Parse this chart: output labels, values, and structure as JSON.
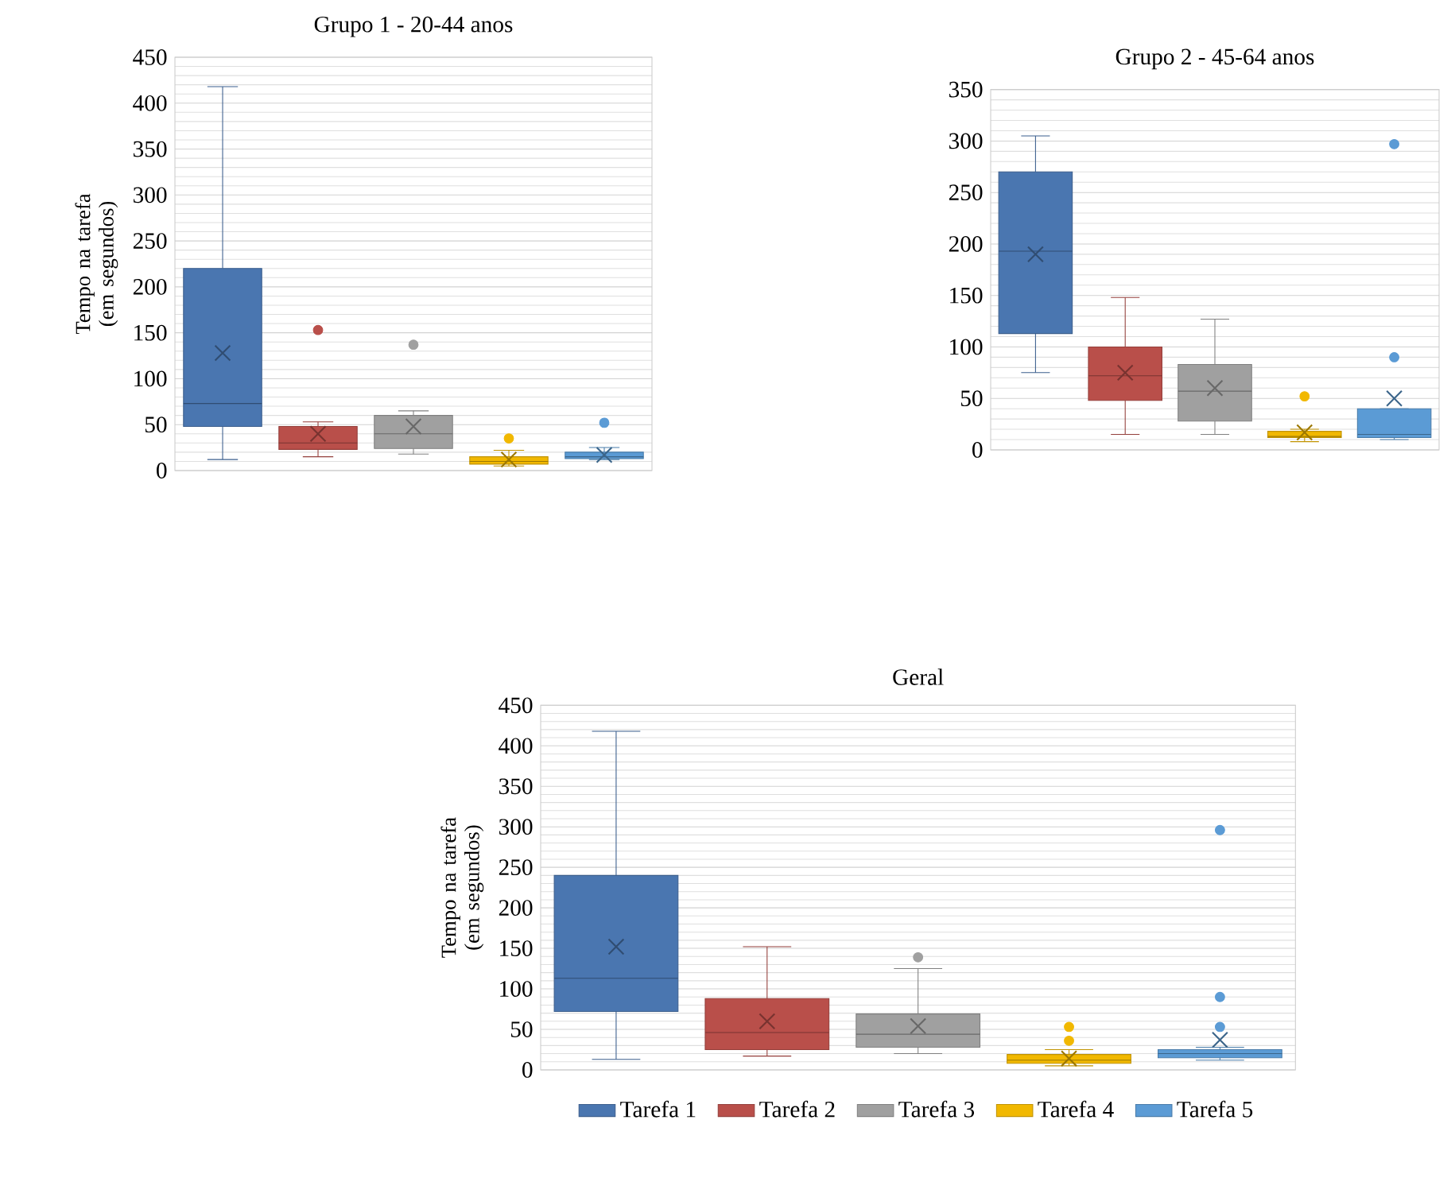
{
  "chart_data": [
    {
      "type": "box",
      "title": "Grupo 1 - 20-44 anos",
      "ylabel": "Tempo na tarefa (em segundos)",
      "categories": [
        null
      ],
      "ylim": [
        0,
        450
      ],
      "yticks": [
        0,
        50,
        100,
        150,
        200,
        250,
        300,
        350,
        400,
        450
      ],
      "grid": "y",
      "tick_labels": "y",
      "legend": false,
      "series": [
        {
          "color": "#4a76b0",
          "boxes": [
            {
              "low": 12,
              "q1": 48,
              "median": 73,
              "q3": 220,
              "high": 418,
              "mean": 128
            }
          ]
        },
        {
          "color": "#b94f4a",
          "boxes": [
            {
              "low": 15,
              "q1": 23,
              "median": 30,
              "q3": 48,
              "high": 53,
              "mean": 40,
              "outliers": [
                153
              ]
            }
          ]
        },
        {
          "color": "#a0a0a0",
          "boxes": [
            {
              "low": 18,
              "q1": 24,
              "median": 40,
              "q3": 60,
              "high": 65,
              "mean": 48,
              "outliers": [
                137
              ]
            }
          ]
        },
        {
          "color": "#f1b800",
          "boxes": [
            {
              "low": 5,
              "q1": 7,
              "median": 10,
              "q3": 15,
              "high": 22,
              "mean": 12,
              "outliers": [
                35
              ]
            }
          ]
        },
        {
          "color": "#5b9bd5",
          "boxes": [
            {
              "low": 12,
              "q1": 13,
              "median": 15,
              "q3": 20,
              "high": 25,
              "mean": 17,
              "outliers": [
                52
              ]
            }
          ]
        }
      ]
    },
    {
      "type": "box",
      "title": "Grupo 2 - 45-64 anos",
      "categories": [
        null
      ],
      "ylim": [
        0,
        350
      ],
      "yticks": [
        0,
        50,
        100,
        150,
        200,
        250,
        300,
        350
      ],
      "grid": "y",
      "tick_labels": "y",
      "legend": false,
      "series": [
        {
          "color": "#4a76b0",
          "boxes": [
            {
              "low": 75,
              "q1": 113,
              "median": 193,
              "q3": 270,
              "high": 305,
              "mean": 190
            }
          ]
        },
        {
          "color": "#b94f4a",
          "boxes": [
            {
              "low": 15,
              "q1": 48,
              "median": 72,
              "q3": 100,
              "high": 148,
              "mean": 75
            }
          ]
        },
        {
          "color": "#a0a0a0",
          "boxes": [
            {
              "low": 15,
              "q1": 28,
              "median": 57,
              "q3": 83,
              "high": 127,
              "mean": 60
            }
          ]
        },
        {
          "color": "#f1b800",
          "boxes": [
            {
              "low": 8,
              "q1": 12,
              "median": 13,
              "q3": 18,
              "high": 20,
              "mean": 17,
              "outliers": [
                52
              ]
            }
          ]
        },
        {
          "color": "#5b9bd5",
          "boxes": [
            {
              "low": 10,
              "q1": 12,
              "median": 15,
              "q3": 40,
              "high": 40,
              "mean": 50,
              "outliers": [
                90,
                297
              ]
            }
          ]
        }
      ]
    },
    {
      "type": "box",
      "title": "Geral",
      "ylabel": "Tempo na tarefa (em segundos)",
      "categories": [
        null
      ],
      "ylim": [
        0,
        450
      ],
      "yticks": [
        0,
        50,
        100,
        150,
        200,
        250,
        300,
        350,
        400,
        450
      ],
      "grid": "y",
      "tick_labels": "y",
      "legend": "bottom",
      "series": [
        {
          "name": "Tarefa 1",
          "color": "#4a76b0",
          "boxes": [
            {
              "low": 13,
              "q1": 72,
              "median": 113,
              "q3": 240,
              "high": 418,
              "mean": 152
            }
          ]
        },
        {
          "name": "Tarefa 2",
          "color": "#b94f4a",
          "boxes": [
            {
              "low": 17,
              "q1": 25,
              "median": 46,
              "q3": 88,
              "high": 152,
              "mean": 60
            }
          ]
        },
        {
          "name": "Tarefa 3",
          "color": "#a0a0a0",
          "boxes": [
            {
              "low": 20,
              "q1": 28,
              "median": 44,
              "q3": 69,
              "high": 125,
              "mean": 54,
              "outliers": [
                139
              ]
            }
          ]
        },
        {
          "name": "Tarefa 4",
          "color": "#f1b800",
          "boxes": [
            {
              "low": 5,
              "q1": 8,
              "median": 12,
              "q3": 19,
              "high": 25,
              "mean": 14,
              "outliers": [
                36,
                53
              ]
            }
          ]
        },
        {
          "name": "Tarefa 5",
          "color": "#5b9bd5",
          "boxes": [
            {
              "low": 12,
              "q1": 15,
              "median": 20,
              "q3": 25,
              "high": 28,
              "mean": 37,
              "outliers": [
                53,
                90,
                296
              ]
            }
          ]
        }
      ]
    }
  ]
}
